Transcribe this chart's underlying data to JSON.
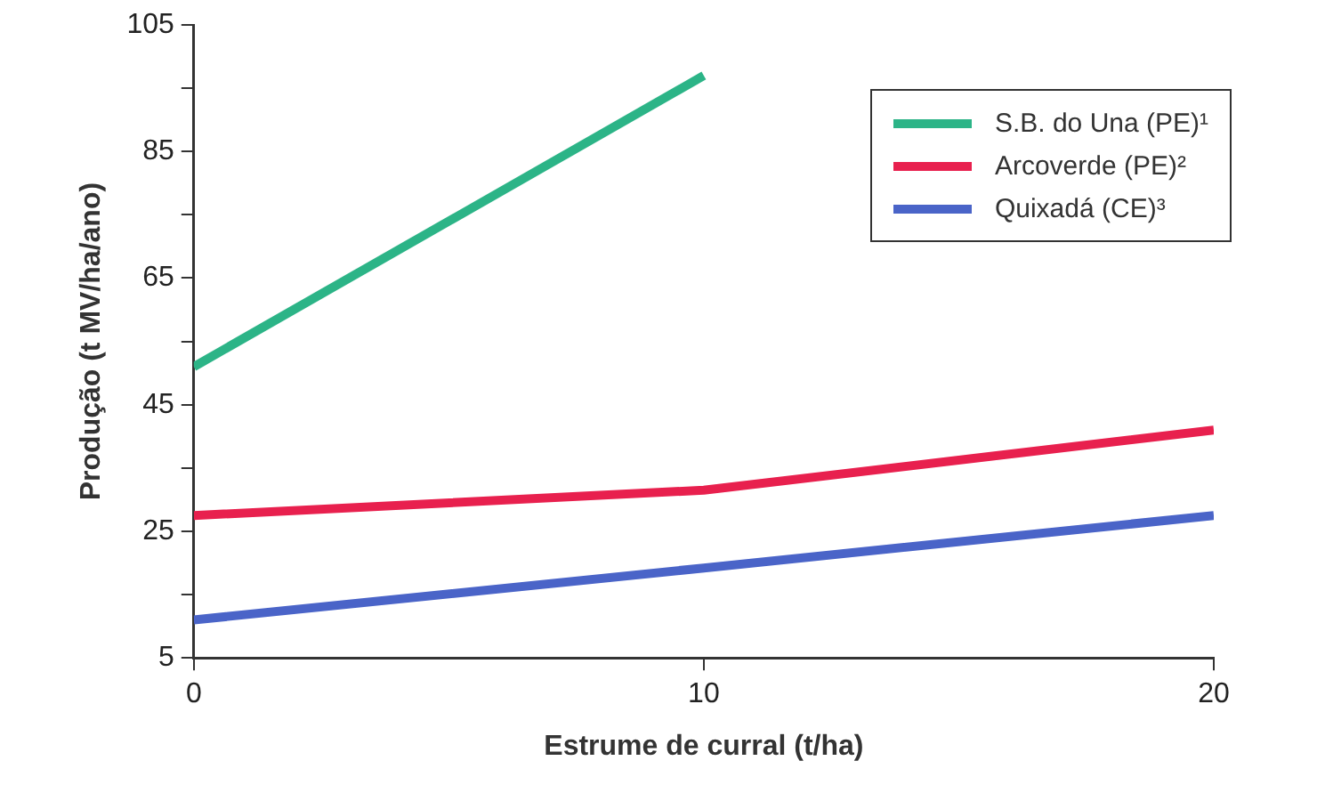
{
  "chart_data": {
    "type": "line",
    "xlabel": "Estrume de curral (t/ha)",
    "ylabel": "Produção (t MV/ha/ano)",
    "xlim": [
      0,
      20
    ],
    "xticks": [
      0,
      10,
      20
    ],
    "ylim": [
      5,
      105
    ],
    "yticks": [
      5,
      {
        "value": 15,
        "label": null
      },
      25,
      {
        "value": 35,
        "label": null
      },
      45,
      {
        "value": 55,
        "label": null
      },
      65,
      {
        "value": 75,
        "label": null
      },
      85,
      {
        "value": 95,
        "label": null
      },
      105
    ],
    "grid": false,
    "legend": "top right",
    "marker": "none",
    "line_style": "solid",
    "series": [
      {
        "name": "S.B. do Una (PE)¹",
        "color": "#2cb487",
        "x": [
          0,
          10
        ],
        "values": [
          51,
          97
        ]
      },
      {
        "name": "Arcoverde (PE)²",
        "color": "#e8204e",
        "x": [
          0,
          10,
          20
        ],
        "values": [
          27.5,
          31.5,
          41
        ]
      },
      {
        "name": "Quixadá (CE)³",
        "color": "#4a64c8",
        "x": [
          0,
          10,
          20
        ],
        "values": [
          11,
          19.2,
          27.5
        ]
      }
    ]
  }
}
